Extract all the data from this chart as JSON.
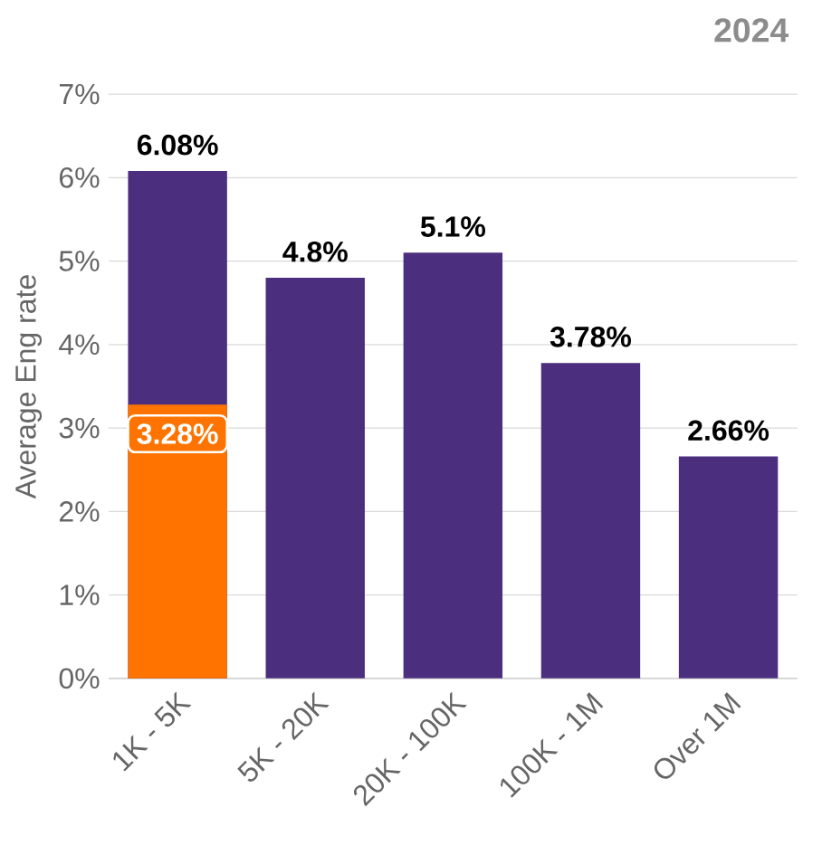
{
  "chart_data": {
    "type": "bar",
    "title": "2024",
    "ylabel": "Average Eng rate",
    "categories": [
      "1K - 5K",
      "5K - 20K",
      "20K - 100K",
      "100K - 1M",
      "Over 1M"
    ],
    "series": [
      {
        "color": "#4b2f7e",
        "values": [
          6.08,
          4.8,
          5.1,
          3.78,
          2.66
        ],
        "value_labels": [
          "6.08%",
          "4.8%",
          "5.1%",
          "3.78%",
          "2.66%"
        ]
      },
      {
        "color": "#ff7400",
        "values": [
          3.28,
          null,
          null,
          null,
          null
        ],
        "value_labels": [
          "3.28%",
          null,
          null,
          null,
          null
        ]
      }
    ],
    "ylim": [
      0,
      7
    ],
    "yticks": [
      {
        "value": 0,
        "label": "0%"
      },
      {
        "value": 1,
        "label": "1%"
      },
      {
        "value": 2,
        "label": "2%"
      },
      {
        "value": 3,
        "label": "3%"
      },
      {
        "value": 4,
        "label": "4%"
      },
      {
        "value": 5,
        "label": "5%"
      },
      {
        "value": 6,
        "label": "6%"
      },
      {
        "value": 7,
        "label": "7%"
      }
    ],
    "grid": "y"
  }
}
